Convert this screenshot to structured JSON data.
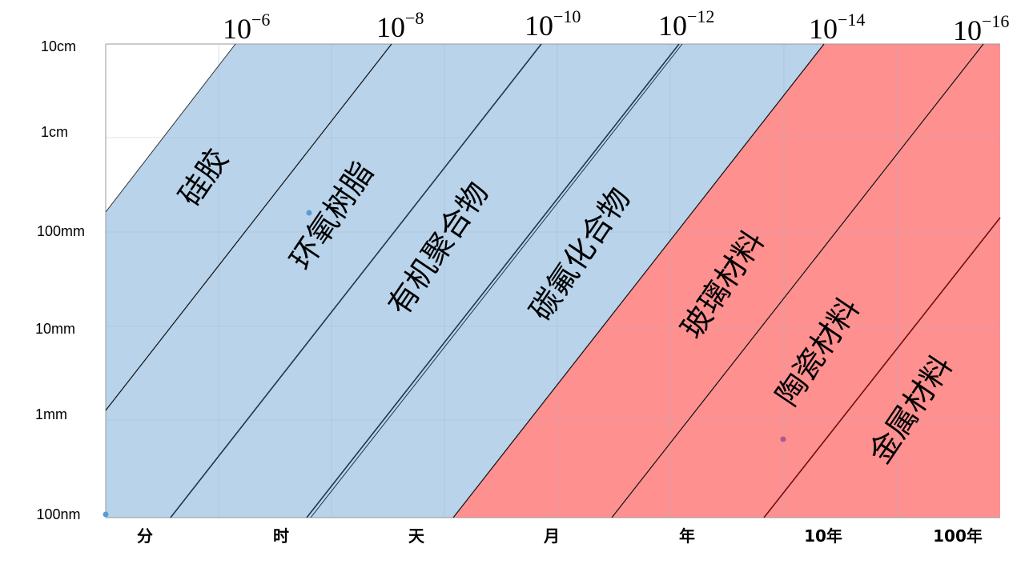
{
  "chart_data": {
    "type": "area",
    "title": "",
    "x_ticks": [
      "分",
      "时",
      "天",
      "月",
      "年",
      "10年",
      "100年"
    ],
    "y_ticks": [
      "10cm",
      "1cm",
      "100mm",
      "10mm",
      "1mm",
      "100nm"
    ],
    "line_labels": [
      {
        "base": "10",
        "exp": "−6"
      },
      {
        "base": "10",
        "exp": "−8"
      },
      {
        "base": "10",
        "exp": "−10"
      },
      {
        "base": "10",
        "exp": "−12"
      },
      {
        "base": "10",
        "exp": "−14"
      },
      {
        "base": "10",
        "exp": "−16"
      }
    ],
    "regions": [
      {
        "name": "硅胶",
        "group": "blue"
      },
      {
        "name": "环氧树脂",
        "group": "blue"
      },
      {
        "name": "有机聚合物",
        "group": "blue"
      },
      {
        "name": "碳氟化合物",
        "group": "blue"
      },
      {
        "name": "玻璃材料",
        "group": "red"
      },
      {
        "name": "陶瓷材料",
        "group": "red"
      },
      {
        "name": "金属材料",
        "group": "red"
      }
    ],
    "colors": {
      "blue_region": "#b8d3ea",
      "red_region": "#ff9090",
      "grid": "#9fb7cf",
      "line": "#111111"
    }
  }
}
